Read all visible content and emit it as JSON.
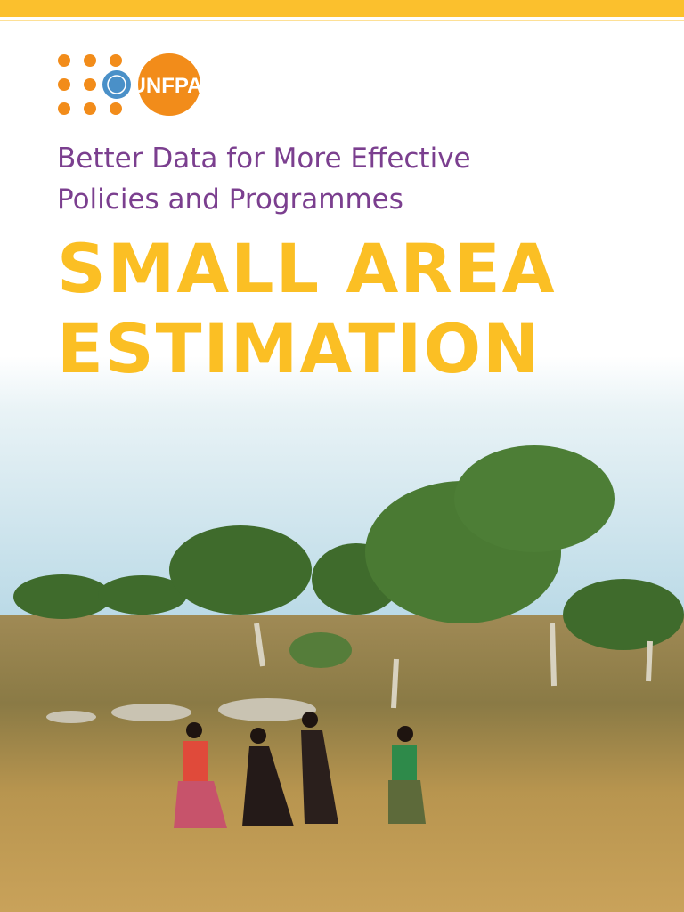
{
  "logo": {
    "text": "UNFPA"
  },
  "header": {
    "subtitle": [
      "Better Data for More Effective",
      "Policies and Programmes"
    ],
    "title": [
      "SMALL AREA",
      "ESTIMATION"
    ]
  }
}
